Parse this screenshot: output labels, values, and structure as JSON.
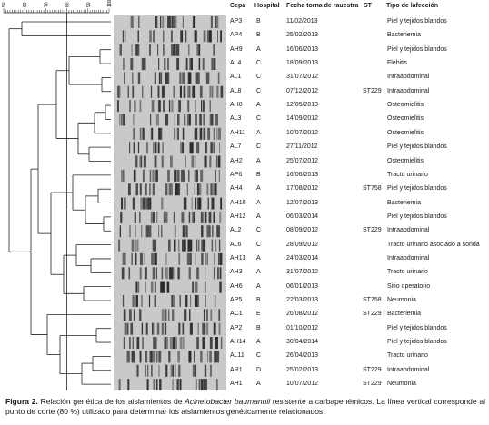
{
  "headers": {
    "cepa": "Cepa",
    "hospital": "Hospital",
    "fecha": "Fecha torna de rauestra",
    "st": "ST",
    "tipo": "Tipo de lafección"
  },
  "scale_ticks": [
    "50",
    "60",
    "70",
    "80",
    "90",
    "100"
  ],
  "rows": [
    {
      "cepa": "AP3",
      "hospital": "B",
      "fecha": "11/02/2013",
      "st": "",
      "tipo": "Piel y tejidos blandos"
    },
    {
      "cepa": "AP4",
      "hospital": "B",
      "fecha": "25/02/2013",
      "st": "",
      "tipo": "Bacteriemia"
    },
    {
      "cepa": "AH9",
      "hospital": "A",
      "fecha": "16/06/2013",
      "st": "",
      "tipo": "Piel y tejidos blandos"
    },
    {
      "cepa": "AL4",
      "hospital": "C",
      "fecha": "18/09/2013",
      "st": "",
      "tipo": "Flebitis"
    },
    {
      "cepa": "AL1",
      "hospital": "C",
      "fecha": "31/07/2012",
      "st": "",
      "tipo": "Intraabdominal"
    },
    {
      "cepa": "AL8",
      "hospital": "C",
      "fecha": "07/12/2012",
      "st": "ST229",
      "tipo": "Intraabdominal"
    },
    {
      "cepa": "AH8",
      "hospital": "A",
      "fecha": "12/05/2013",
      "st": "",
      "tipo": "Osteomielitis"
    },
    {
      "cepa": "AL3",
      "hospital": "C",
      "fecha": "14/09/2012",
      "st": "",
      "tipo": "Osteomielitis"
    },
    {
      "cepa": "AH11",
      "hospital": "A",
      "fecha": "10/07/2012",
      "st": "",
      "tipo": "Osteomielitis"
    },
    {
      "cepa": "AL7",
      "hospital": "C",
      "fecha": "27/11/2012",
      "st": "",
      "tipo": "Piel y tejidos blandos"
    },
    {
      "cepa": "AH2",
      "hospital": "A",
      "fecha": "25/07/2012",
      "st": "",
      "tipo": "Osteomielitis"
    },
    {
      "cepa": "AP6",
      "hospital": "B",
      "fecha": "16/06/2013",
      "st": "",
      "tipo": "Tracto urinario"
    },
    {
      "cepa": "AH4",
      "hospital": "A",
      "fecha": "17/08/2012",
      "st": "ST758",
      "tipo": "Piel y tejidos blandos"
    },
    {
      "cepa": "AH10",
      "hospital": "A",
      "fecha": "12/07/2013",
      "st": "",
      "tipo": "Bacteriemia"
    },
    {
      "cepa": "AH12",
      "hospital": "A",
      "fecha": "06/03/2014",
      "st": "",
      "tipo": "Piel y tejidos blandos"
    },
    {
      "cepa": "AL2",
      "hospital": "C",
      "fecha": "08/09/2012",
      "st": "ST229",
      "tipo": "Intraabdominal"
    },
    {
      "cepa": "AL6",
      "hospital": "C",
      "fecha": "28/09/2012",
      "st": "",
      "tipo": "Tracto urinario asociado a sonda"
    },
    {
      "cepa": "AH13",
      "hospital": "A",
      "fecha": "24/03/2014",
      "st": "",
      "tipo": "Intraabdominal"
    },
    {
      "cepa": "AH3",
      "hospital": "A",
      "fecha": "31/07/2012",
      "st": "",
      "tipo": "Tracto urinario"
    },
    {
      "cepa": "AH6",
      "hospital": "A",
      "fecha": "06/01/2013",
      "st": "",
      "tipo": "Sitio operatorio"
    },
    {
      "cepa": "AP5",
      "hospital": "B",
      "fecha": "22/03/2013",
      "st": "ST758",
      "tipo": "Neumonia"
    },
    {
      "cepa": "AC1",
      "hospital": "E",
      "fecha": "26/08/2012",
      "st": "ST229",
      "tipo": "Bacteriemia"
    },
    {
      "cepa": "AP2",
      "hospital": "B",
      "fecha": "01/10/2012",
      "st": "",
      "tipo": "Piel y tejidos blandos"
    },
    {
      "cepa": "AH14",
      "hospital": "A",
      "fecha": "30/04/2014",
      "st": "",
      "tipo": "Piel y tejidos blandos"
    },
    {
      "cepa": "AL11",
      "hospital": "C",
      "fecha": "26/04/2013",
      "st": "",
      "tipo": "Tracto urinario"
    },
    {
      "cepa": "AR1",
      "hospital": "D",
      "fecha": "25/02/2013",
      "st": "ST229",
      "tipo": "Intraabdominal"
    },
    {
      "cepa": "AH1",
      "hospital": "A",
      "fecha": "10/07/2012",
      "st": "ST229",
      "tipo": "Neumonia"
    }
  ],
  "caption": {
    "label": "Figura 2.",
    "text_before": " Relación genética de los aislamientos de ",
    "organism": "Acinetobacter baumannii",
    "text_after": " resistente a carbapenémicos. La línea vertical corresponde al punto de corte (80 %) utilizado para determinar los aislamientos genéticamente relacionados."
  },
  "colors": {
    "text": "#1a1a1a",
    "gel_background": "#c9c9c9",
    "band": "#2a2a2a"
  }
}
